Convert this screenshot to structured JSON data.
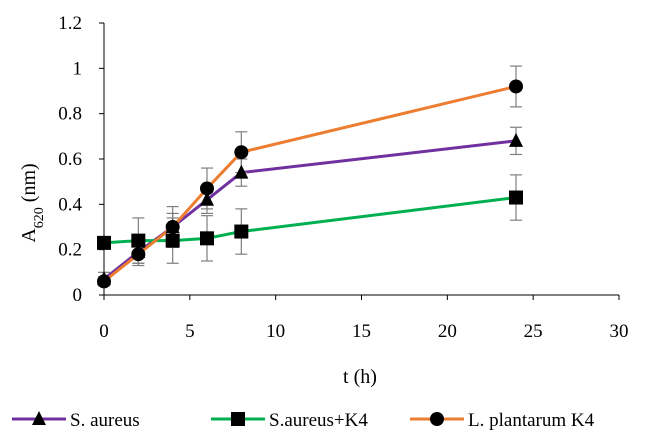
{
  "chart_data": {
    "type": "line",
    "title": "",
    "xlabel": "t (h)",
    "ylabel": {
      "main": "A",
      "sub": "620",
      "unit": " (nm)"
    },
    "xlim": [
      0,
      30
    ],
    "ylim": [
      0,
      1.2
    ],
    "xticks": [
      0,
      5,
      10,
      15,
      20,
      25,
      30
    ],
    "yticks": [
      "0",
      "0.2",
      "0.4",
      "0.6",
      "0.8",
      "1",
      "1.2"
    ],
    "grid": false,
    "legend_position": "bottom",
    "series": [
      {
        "name": "S. aureus",
        "color": "#7030A0",
        "marker": "triangle",
        "points": [
          {
            "x": 0,
            "y": 0.07,
            "err": 0.03
          },
          {
            "x": 2,
            "y": 0.19,
            "err": 0.05
          },
          {
            "x": 4,
            "y": 0.3,
            "err": 0.06
          },
          {
            "x": 6,
            "y": 0.42,
            "err": 0.06
          },
          {
            "x": 8,
            "y": 0.54,
            "err": 0.06
          },
          {
            "x": 24,
            "y": 0.68,
            "err": 0.06
          }
        ]
      },
      {
        "name": "S.aureus+K4",
        "color": "#00B050",
        "marker": "square",
        "points": [
          {
            "x": 0,
            "y": 0.23,
            "err": 0.0
          },
          {
            "x": 2,
            "y": 0.24,
            "err": 0.1
          },
          {
            "x": 4,
            "y": 0.24,
            "err": 0.1
          },
          {
            "x": 6,
            "y": 0.25,
            "err": 0.1
          },
          {
            "x": 8,
            "y": 0.28,
            "err": 0.1
          },
          {
            "x": 24,
            "y": 0.43,
            "err": 0.1
          }
        ]
      },
      {
        "name": "L. plantarum K4",
        "color": "#ED7D31",
        "marker": "circle",
        "points": [
          {
            "x": 0,
            "y": 0.06,
            "err": 0.02
          },
          {
            "x": 2,
            "y": 0.18,
            "err": 0.05
          },
          {
            "x": 4,
            "y": 0.3,
            "err": 0.09
          },
          {
            "x": 6,
            "y": 0.47,
            "err": 0.09
          },
          {
            "x": 8,
            "y": 0.63,
            "err": 0.09
          },
          {
            "x": 24,
            "y": 0.92,
            "err": 0.09
          }
        ]
      }
    ]
  }
}
